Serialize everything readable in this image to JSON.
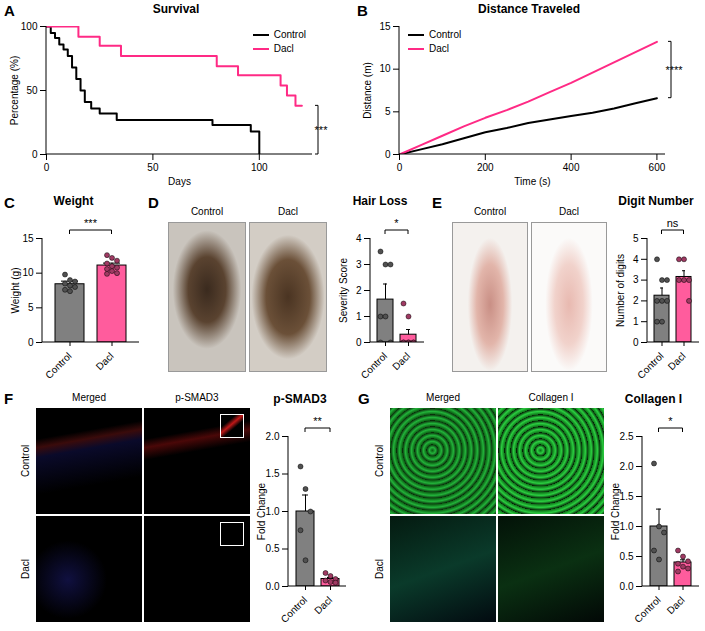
{
  "chart_data": [
    {
      "panel": "A",
      "type": "line",
      "title": "Survival",
      "x_label": "Days",
      "y_label": "Percentage (%)",
      "xlim": [
        0,
        125
      ],
      "xticks": [
        0,
        50,
        100
      ],
      "ylim": [
        0,
        100
      ],
      "yticks": [
        0,
        50,
        100
      ],
      "legend": "top-right",
      "line_style": "step",
      "significance": "***",
      "series": [
        {
          "name": "Control",
          "color": "#000000",
          "x": [
            0,
            2,
            4,
            6,
            8,
            10,
            12,
            14,
            16,
            18,
            21,
            25,
            33,
            78,
            96,
            100
          ],
          "values": [
            100,
            95,
            91,
            86,
            82,
            77,
            68,
            59,
            50,
            41,
            36,
            32,
            27,
            23,
            18,
            0
          ]
        },
        {
          "name": "Dacl",
          "color": "#ff2a85",
          "x": [
            0,
            15,
            25,
            35,
            80,
            90,
            110,
            113,
            117,
            120
          ],
          "values": [
            100,
            92,
            85,
            77,
            69,
            62,
            54,
            46,
            38,
            38
          ]
        }
      ]
    },
    {
      "panel": "B",
      "type": "line",
      "title": "Distance Traveled",
      "x_label": "Time (s)",
      "y_label": "Distance (m)",
      "xlim": [
        0,
        620
      ],
      "xticks": [
        0,
        200,
        400,
        600
      ],
      "ylim": [
        0,
        15
      ],
      "yticks": [
        0,
        5,
        10,
        15
      ],
      "legend": "top-left",
      "line_style": "solid",
      "significance": "****",
      "x": [
        0,
        50,
        100,
        150,
        200,
        250,
        300,
        350,
        400,
        450,
        500,
        550,
        600
      ],
      "series": [
        {
          "name": "Control",
          "color": "#000000",
          "values": [
            0,
            0.6,
            1.2,
            1.9,
            2.6,
            3.1,
            3.7,
            4.1,
            4.5,
            4.9,
            5.4,
            6.0,
            6.6
          ]
        },
        {
          "name": "Dacl",
          "color": "#ff2a85",
          "values": [
            0,
            1.1,
            2.2,
            3.3,
            4.3,
            5.2,
            6.2,
            7.3,
            8.4,
            9.6,
            10.8,
            12.0,
            13.2
          ]
        }
      ]
    },
    {
      "panel": "C",
      "type": "bar",
      "title": "Weight",
      "y_label": "Weight (g)",
      "categories": [
        "Control",
        "Dacl"
      ],
      "values": [
        8.4,
        11.1
      ],
      "errors": [
        0.45,
        0.35
      ],
      "points": [
        [
          9.8,
          9.0,
          8.8,
          8.5,
          8.2,
          8.0,
          7.6,
          7.4
        ],
        [
          12.6,
          12.2,
          11.8,
          11.4,
          11.0,
          10.8,
          10.6,
          10.3,
          10.0,
          9.9
        ]
      ],
      "colors": [
        "#808080",
        "#ff5c9d"
      ],
      "ylim": [
        0,
        15
      ],
      "yticks": [
        0,
        5,
        10,
        15
      ],
      "significance": "***"
    },
    {
      "panel": "D",
      "type": "bar",
      "title": "Hair Loss",
      "y_label": "Severity Score",
      "image_columns": [
        "Control",
        "Dacl"
      ],
      "categories": [
        "Control",
        "Dacl"
      ],
      "values": [
        1.65,
        0.3
      ],
      "errors": [
        0.6,
        0.2
      ],
      "points": [
        [
          3.5,
          3.0,
          3.0,
          1.0,
          1.0,
          0,
          0
        ],
        [
          1.5,
          1.0,
          0,
          0,
          0,
          0,
          0,
          0
        ]
      ],
      "colors": [
        "#808080",
        "#ff5c9d"
      ],
      "ylim": [
        0,
        4
      ],
      "yticks": [
        0,
        1,
        2,
        3,
        4
      ],
      "significance": "*"
    },
    {
      "panel": "E",
      "type": "bar",
      "title": "Digit Number",
      "y_label": "Number of digits",
      "image_columns": [
        "Control",
        "Dacl"
      ],
      "categories": [
        "Control",
        "Dacl"
      ],
      "values": [
        2.25,
        3.15
      ],
      "errors": [
        0.37,
        0.3
      ],
      "points": [
        [
          4,
          3,
          3,
          2,
          2,
          2,
          1,
          1
        ],
        [
          4,
          4,
          3,
          3,
          3,
          2
        ]
      ],
      "colors": [
        "#808080",
        "#ff5c9d"
      ],
      "ylim": [
        0,
        5
      ],
      "yticks": [
        0,
        1,
        2,
        3,
        4,
        5
      ],
      "significance": "ns"
    },
    {
      "panel": "F",
      "type": "bar",
      "title": "p-SMAD3",
      "y_label": "Fold Change",
      "image_columns": [
        "Merged",
        "p-SMAD3"
      ],
      "image_rows": [
        "Control",
        "Dacl"
      ],
      "categories": [
        "Control",
        "Dacl"
      ],
      "values": [
        1.0,
        0.1
      ],
      "errors": [
        0.22,
        0.02
      ],
      "points": [
        [
          1.6,
          1.3,
          1.0,
          0.75,
          0.35
        ],
        [
          0.18,
          0.14,
          0.1,
          0.08,
          0.06,
          0.05
        ]
      ],
      "colors": [
        "#808080",
        "#ff5c9d"
      ],
      "ylim": [
        0,
        2
      ],
      "yticks": [
        {
          "value": 0,
          "label": "0.0"
        },
        0.5,
        {
          "value": 1,
          "label": "1.0"
        },
        1.5,
        {
          "value": 2,
          "label": "2.0"
        }
      ],
      "significance": "**"
    },
    {
      "panel": "G",
      "type": "bar",
      "title": "Collagen I",
      "y_label": "Fold Change",
      "image_columns": [
        "Merged",
        "Collagen I"
      ],
      "image_rows": [
        "Control",
        "Dacl"
      ],
      "categories": [
        "Control",
        "Dacl"
      ],
      "values": [
        1.0,
        0.4
      ],
      "errors": [
        0.29,
        0.045
      ],
      "points": [
        [
          2.05,
          1.0,
          0.9,
          0.6,
          0.45
        ],
        [
          0.6,
          0.5,
          0.42,
          0.38,
          0.33,
          0.3,
          0.25
        ]
      ],
      "colors": [
        "#808080",
        "#ff5c9d"
      ],
      "ylim": [
        0,
        2.5
      ],
      "yticks": [
        {
          "value": 0,
          "label": "0.0"
        },
        0.5,
        {
          "value": 1,
          "label": "1.0"
        },
        1.5,
        {
          "value": 2,
          "label": "2.0"
        },
        2.5
      ],
      "significance": "*"
    }
  ]
}
